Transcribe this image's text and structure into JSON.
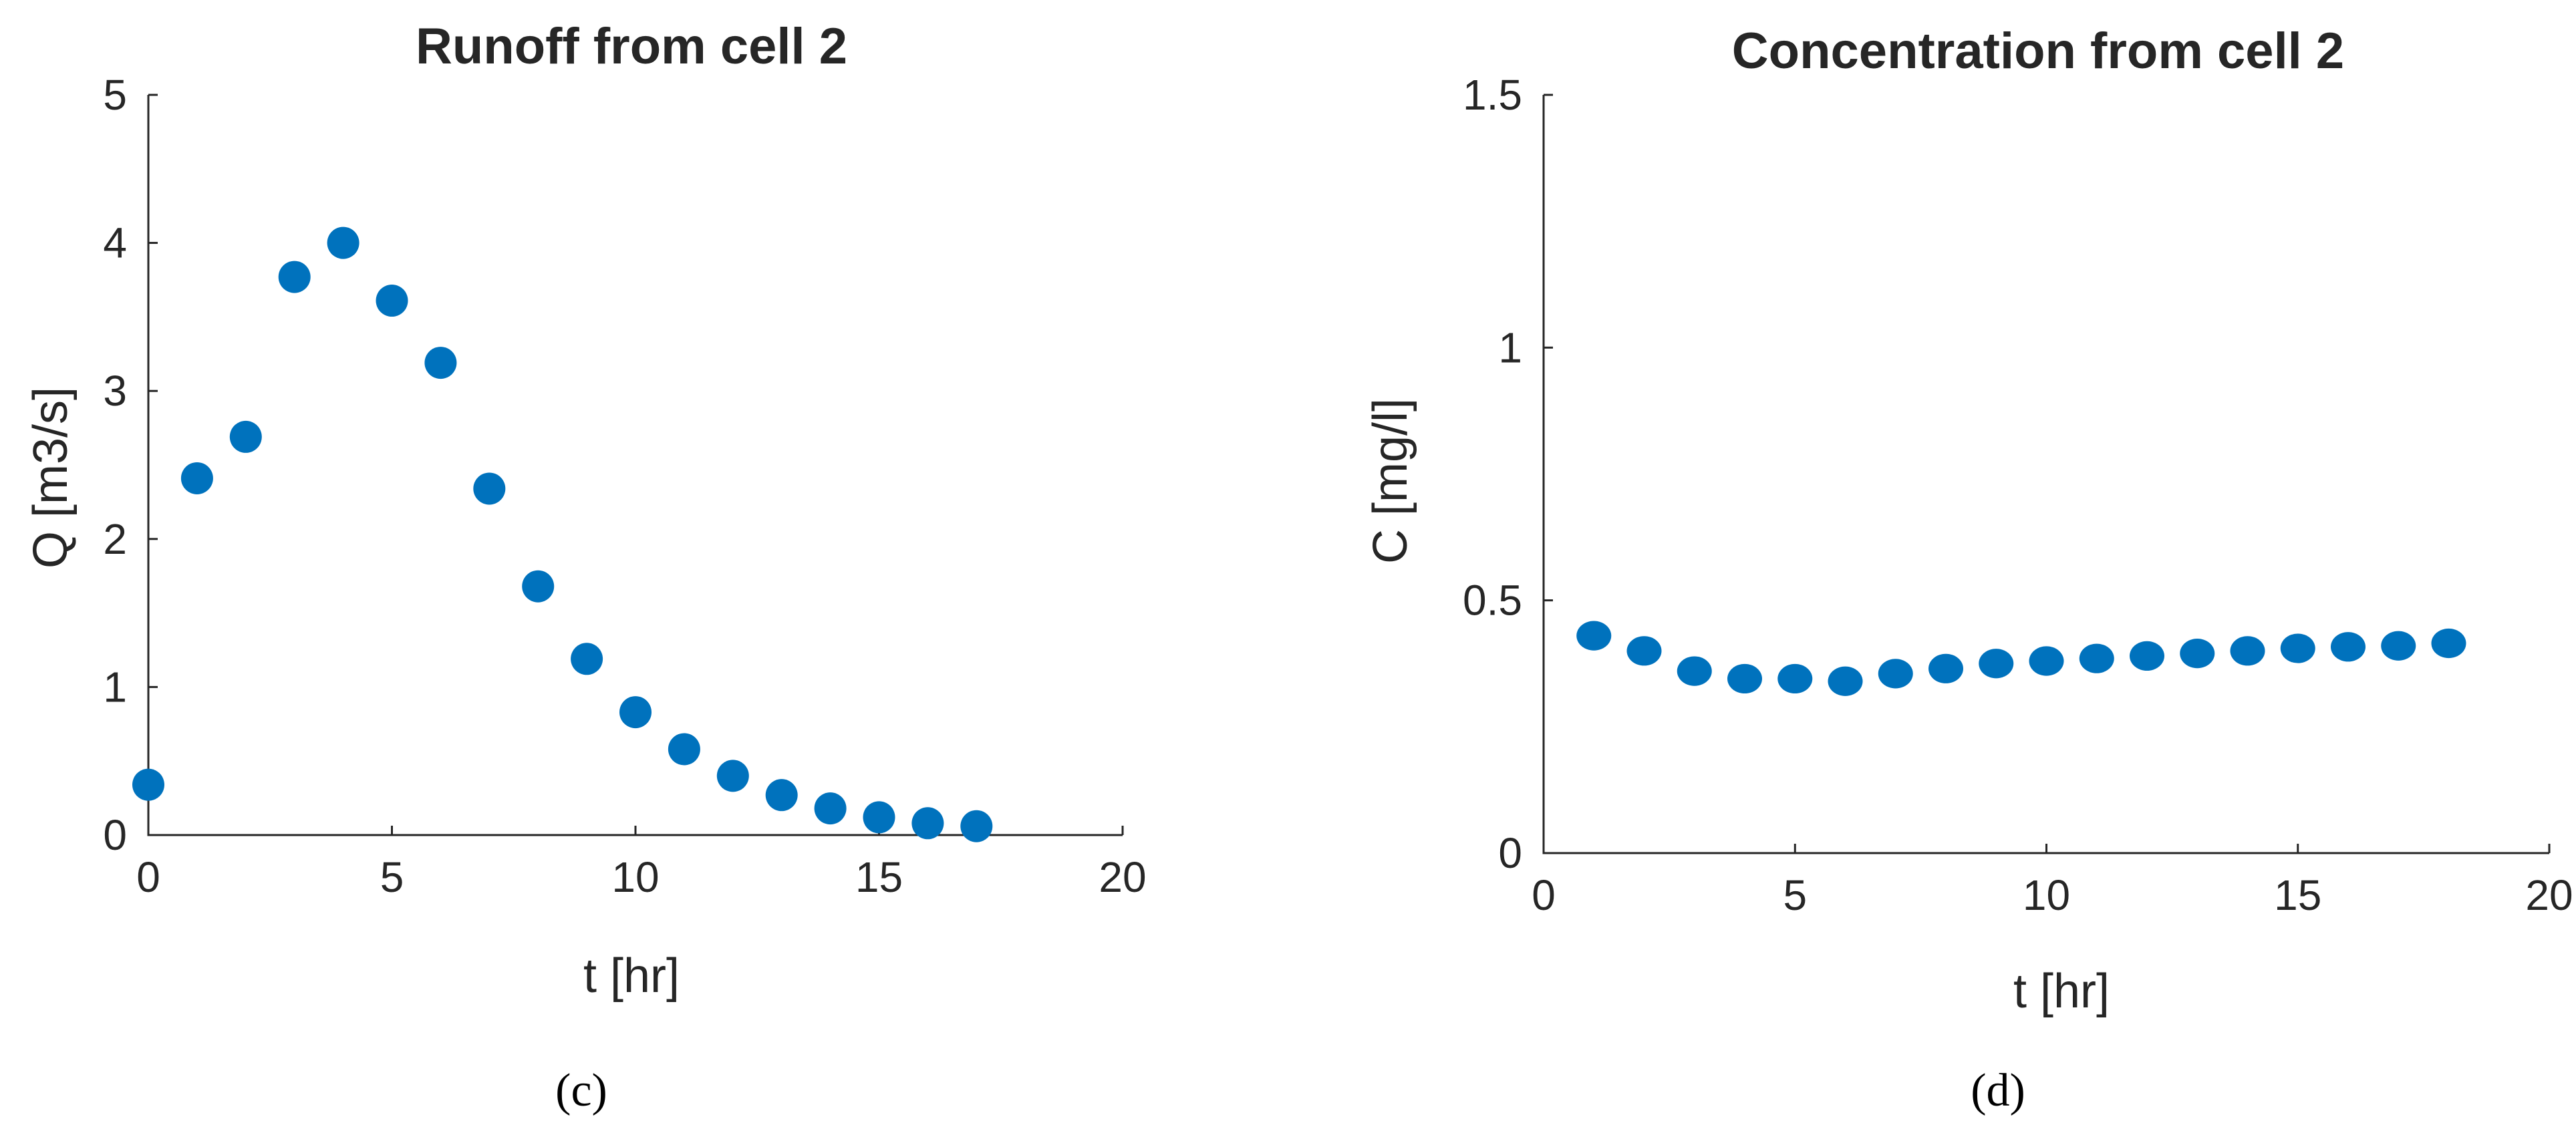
{
  "chart_data": [
    {
      "type": "scatter",
      "title": "Runoff from cell 2",
      "xlabel": "t [hr]",
      "ylabel": "Q [m3/s]",
      "xlim": [
        0,
        20
      ],
      "ylim": [
        0,
        5
      ],
      "xticks": [
        "0",
        "5",
        "10",
        "15",
        "20"
      ],
      "yticks": [
        "0",
        "1",
        "2",
        "3",
        "4",
        "5"
      ],
      "caption": "(c)",
      "color": "#0072BD",
      "x": [
        0,
        1,
        2,
        3,
        4,
        5,
        6,
        7,
        8,
        9,
        10,
        11,
        12,
        13,
        14,
        15,
        16,
        17
      ],
      "y": [
        0.34,
        2.41,
        2.69,
        3.77,
        4.0,
        3.61,
        3.19,
        2.34,
        1.68,
        1.19,
        0.83,
        0.58,
        0.4,
        0.27,
        0.18,
        0.12,
        0.08,
        0.06
      ]
    },
    {
      "type": "scatter",
      "title": "Concentration from cell 2",
      "xlabel": "t [hr]",
      "ylabel": "C [mg/l]",
      "xlim": [
        0,
        20
      ],
      "ylim": [
        0,
        1.5
      ],
      "xticks": [
        "0",
        "5",
        "10",
        "15",
        "20"
      ],
      "yticks": [
        "0",
        "0.5",
        "1",
        "1.5"
      ],
      "caption": "(d)",
      "color": "#0072BD",
      "x": [
        1,
        2,
        3,
        4,
        5,
        6,
        7,
        8,
        9,
        10,
        11,
        12,
        13,
        14,
        15,
        16,
        17,
        18
      ],
      "y": [
        0.43,
        0.4,
        0.36,
        0.345,
        0.345,
        0.34,
        0.355,
        0.365,
        0.375,
        0.38,
        0.385,
        0.39,
        0.395,
        0.4,
        0.405,
        0.408,
        0.41,
        0.415
      ]
    }
  ]
}
